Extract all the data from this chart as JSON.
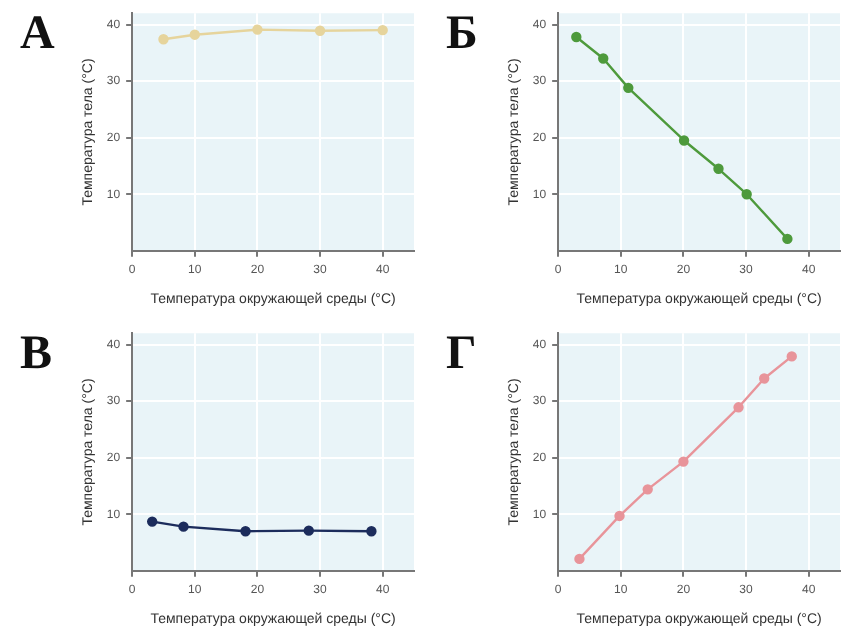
{
  "chart_data": [
    {
      "type": "line",
      "title": "А",
      "xlabel": "Температура окружающей среды (°C)",
      "ylabel": "Температура тела (°C)",
      "x": [
        5,
        10,
        20,
        30,
        40
      ],
      "series": [
        {
          "color": "#e6d49c",
          "values": [
            37.4,
            38.2,
            39.1,
            38.9,
            39.0
          ]
        }
      ],
      "xlim": [
        0,
        45
      ],
      "ylim": [
        0,
        42
      ],
      "xticks": [
        0,
        10,
        20,
        30,
        40
      ],
      "yticks": [
        10,
        20,
        30,
        40
      ],
      "grid": true,
      "marker": "circle"
    },
    {
      "type": "line",
      "title": "Б",
      "xlabel": "Температура окружающей среды (°C)",
      "ylabel": "Температура тела (°C)",
      "x": [
        2.9,
        7.2,
        11.2,
        20.1,
        25.6,
        30.1,
        36.6
      ],
      "series": [
        {
          "color": "#4e9a3c",
          "values": [
            37.8,
            34.0,
            28.8,
            19.5,
            14.5,
            10.0,
            2.1
          ]
        }
      ],
      "xlim": [
        0,
        45
      ],
      "ylim": [
        0,
        42
      ],
      "xticks": [
        0,
        10,
        20,
        30,
        40
      ],
      "yticks": [
        10,
        20,
        30,
        40
      ],
      "grid": true,
      "marker": "circle"
    },
    {
      "type": "line",
      "title": "В",
      "xlabel": "Температура окружающей среды (°C)",
      "ylabel": "Температура тела (°C)",
      "x": [
        3.2,
        8.2,
        18.1,
        28.2,
        38.2
      ],
      "series": [
        {
          "color": "#1c2c5c",
          "values": [
            8.7,
            7.8,
            7.0,
            7.1,
            7.0
          ]
        }
      ],
      "xlim": [
        0,
        45
      ],
      "ylim": [
        0,
        42
      ],
      "xticks": [
        0,
        10,
        20,
        30,
        40
      ],
      "yticks": [
        10,
        20,
        30,
        40
      ],
      "grid": true,
      "marker": "circle"
    },
    {
      "type": "line",
      "title": "Г",
      "xlabel": "Температура окружающей среды (°C)",
      "ylabel": "Температура тела (°C)",
      "x": [
        3.4,
        9.8,
        14.3,
        20.0,
        28.8,
        32.9,
        37.3
      ],
      "series": [
        {
          "color": "#e8949a",
          "values": [
            2.1,
            9.7,
            14.4,
            19.3,
            28.9,
            34.0,
            37.9
          ]
        }
      ],
      "xlim": [
        0,
        45
      ],
      "ylim": [
        0,
        42
      ],
      "xticks": [
        0,
        10,
        20,
        30,
        40
      ],
      "yticks": [
        10,
        20,
        30,
        40
      ],
      "grid": true,
      "marker": "circle"
    }
  ]
}
